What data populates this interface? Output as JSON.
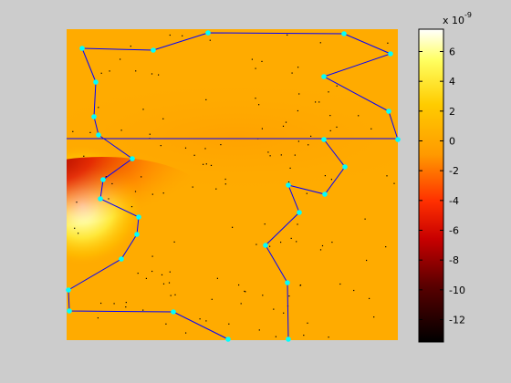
{
  "chart_data": {
    "type": "heatmap",
    "title": "",
    "xlabel": "",
    "ylabel": "",
    "colormap": "hot",
    "colorbar": {
      "exponent_label": "x 10",
      "exponent": "-9",
      "ticks": [
        6,
        4,
        2,
        0,
        -2,
        -4,
        -6,
        -8,
        -10,
        -12
      ],
      "range": [
        -13.5,
        7.5
      ],
      "placement": "right"
    },
    "field": {
      "baseline_value": -1.0,
      "features": [
        {
          "kind": "positive-lobe",
          "location": "left edge, lower-middle",
          "peak_value": 7.2
        },
        {
          "kind": "negative-lobe",
          "location": "left-center, lower-middle",
          "peak_value": -13.0
        }
      ]
    },
    "overlays": {
      "line_color": "#0000ff",
      "marker_color": "#00ffff",
      "notes": "polyline boundary with cyan vertex markers; a horizontal line across the plot; scattered black dots"
    }
  }
}
